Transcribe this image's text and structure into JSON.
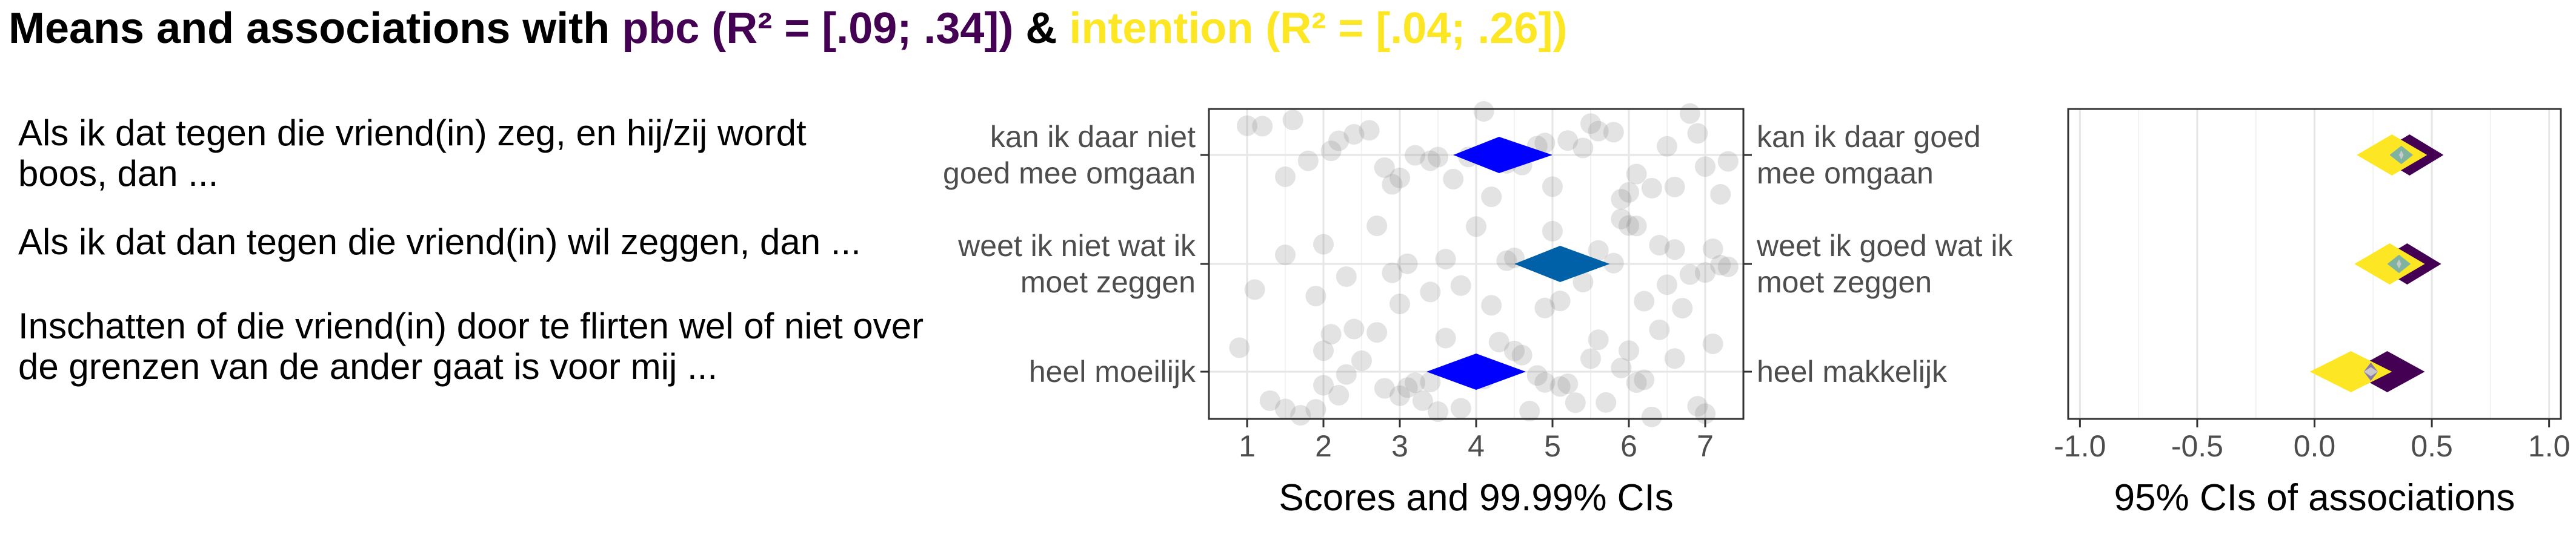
{
  "title": {
    "prefix": "Means and associations with ",
    "pbc_label": "pbc (R² = [.09; .34])",
    "amp": " & ",
    "intention_label": "intention (R² = [.04; .26])"
  },
  "items": [
    "Als ik dat tegen die vriend(in) zeg, en hij/zij wordt boos, dan ...",
    "Als ik dat dan tegen die vriend(in) wil zeggen, dan ...",
    "Inschatten of die vriend(in) door te flirten wel of niet over de grenzen van de ander gaat is voor mij ..."
  ],
  "colors": {
    "pbc": "#440154",
    "intention": "#FDE725",
    "diamond_dark_blue": "#0000FF",
    "diamond_steel_blue": "#0061A8",
    "point_gray": "#808080",
    "inner_teal": "#7FB3A0",
    "inner_purple": "#8C7BA8"
  },
  "chart_data": [
    {
      "type": "scatter",
      "name": "means",
      "xlabel": "Scores and 99.99% CIs",
      "xlim": [
        0.5,
        7.5
      ],
      "xticks": [
        "1",
        "2",
        "3",
        "4",
        "5",
        "6",
        "7"
      ],
      "left_anchors": [
        "kan ik daar niet\ngoed mee omgaan",
        "weet ik niet wat ik\nmoet zeggen",
        "heel moeilijk"
      ],
      "right_anchors": [
        "kan ik daar goed\nmee omgaan",
        "weet ik goed wat ik\nmoet zeggen",
        "heel makkelijk"
      ],
      "mean_ci": [
        {
          "lower": 3.7,
          "mean": 4.3,
          "upper": 5.0
        },
        {
          "lower": 4.5,
          "mean": 5.1,
          "upper": 5.75
        },
        {
          "lower": 3.35,
          "mean": 4.0,
          "upper": 4.65
        }
      ],
      "raw_scores": [
        [
          1.2,
          1.5,
          1.8,
          2.1,
          2.4,
          2.9,
          3.0,
          3.2,
          3.5,
          3.9,
          4.1,
          4.4,
          4.6,
          4.8,
          5.0,
          5.2,
          5.4,
          5.6,
          5.9,
          6.1,
          6.3,
          6.6,
          6.8,
          7.0,
          7.2,
          2.6,
          3.7,
          5.5,
          6.0,
          1.0,
          2.2,
          3.4,
          4.9,
          6.5,
          7.3,
          1.6,
          2.8,
          4.2,
          5.8,
          6.9
        ],
        [
          1.1,
          1.9,
          2.3,
          2.7,
          3.1,
          3.4,
          3.8,
          4.0,
          4.5,
          4.9,
          5.1,
          5.3,
          5.6,
          5.8,
          6.0,
          6.2,
          6.4,
          6.6,
          6.8,
          7.0,
          7.2,
          2.0,
          3.0,
          4.2,
          5.0,
          5.4,
          6.1,
          6.7,
          7.3,
          1.5,
          2.9,
          3.6,
          4.4,
          5.9,
          6.5,
          7.1
        ],
        [
          0.9,
          1.3,
          1.7,
          2.0,
          2.1,
          2.3,
          2.5,
          2.8,
          3.0,
          3.2,
          3.4,
          3.6,
          3.9,
          4.1,
          4.3,
          4.5,
          4.7,
          4.9,
          5.1,
          5.3,
          5.5,
          5.7,
          5.9,
          6.0,
          6.2,
          6.4,
          6.6,
          6.9,
          7.1,
          1.5,
          2.0,
          2.2,
          2.7,
          3.1,
          3.5,
          4.0,
          4.8,
          5.2,
          6.1,
          7.0,
          1.9,
          2.4,
          3.3,
          3.8,
          4.6,
          5.6,
          6.3
        ]
      ]
    },
    {
      "type": "interval",
      "name": "associations",
      "xlabel": "95% CIs of associations",
      "xlim": [
        -1.05,
        1.05
      ],
      "xticks": [
        "-1.0",
        "-0.5",
        "0.0",
        "0.5",
        "1.0"
      ],
      "series": [
        {
          "name": "pbc",
          "intervals": [
            [
              0.26,
              0.55
            ],
            [
              0.25,
              0.54
            ],
            [
              0.15,
              0.47
            ]
          ]
        },
        {
          "name": "intention",
          "intervals": [
            [
              0.18,
              0.48
            ],
            [
              0.17,
              0.47
            ],
            [
              -0.02,
              0.33
            ]
          ]
        }
      ]
    }
  ]
}
